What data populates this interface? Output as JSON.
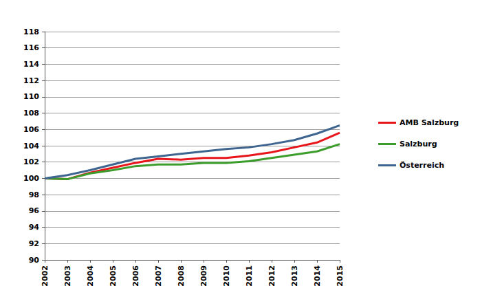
{
  "chart_data": {
    "type": "line",
    "categories": [
      "2002",
      "2003",
      "2004",
      "2005",
      "2006",
      "2007",
      "2008",
      "2009",
      "2010",
      "2011",
      "2012",
      "2013",
      "2014",
      "2015"
    ],
    "series": [
      {
        "name": "AMB Salzburg",
        "color": "#e8161b",
        "values": [
          100,
          99.9,
          100.7,
          101.3,
          101.9,
          102.4,
          102.3,
          102.5,
          102.5,
          102.8,
          103.2,
          103.8,
          104.4,
          105.6
        ]
      },
      {
        "name": "Salzburg",
        "color": "#3c9c2c",
        "values": [
          100,
          99.9,
          100.6,
          101.0,
          101.5,
          101.7,
          101.7,
          101.9,
          101.9,
          102.1,
          102.5,
          102.9,
          103.3,
          104.2
        ]
      },
      {
        "name": "Österreich",
        "color": "#3e6490",
        "values": [
          100,
          100.4,
          101.0,
          101.7,
          102.4,
          102.7,
          103.0,
          103.3,
          103.6,
          103.8,
          104.2,
          104.7,
          105.5,
          106.5
        ]
      }
    ],
    "ylim": [
      90,
      118
    ],
    "yticks": [
      90,
      92,
      94,
      96,
      98,
      100,
      102,
      104,
      106,
      108,
      110,
      112,
      114,
      116,
      118
    ],
    "grid": true,
    "legend": "right"
  }
}
